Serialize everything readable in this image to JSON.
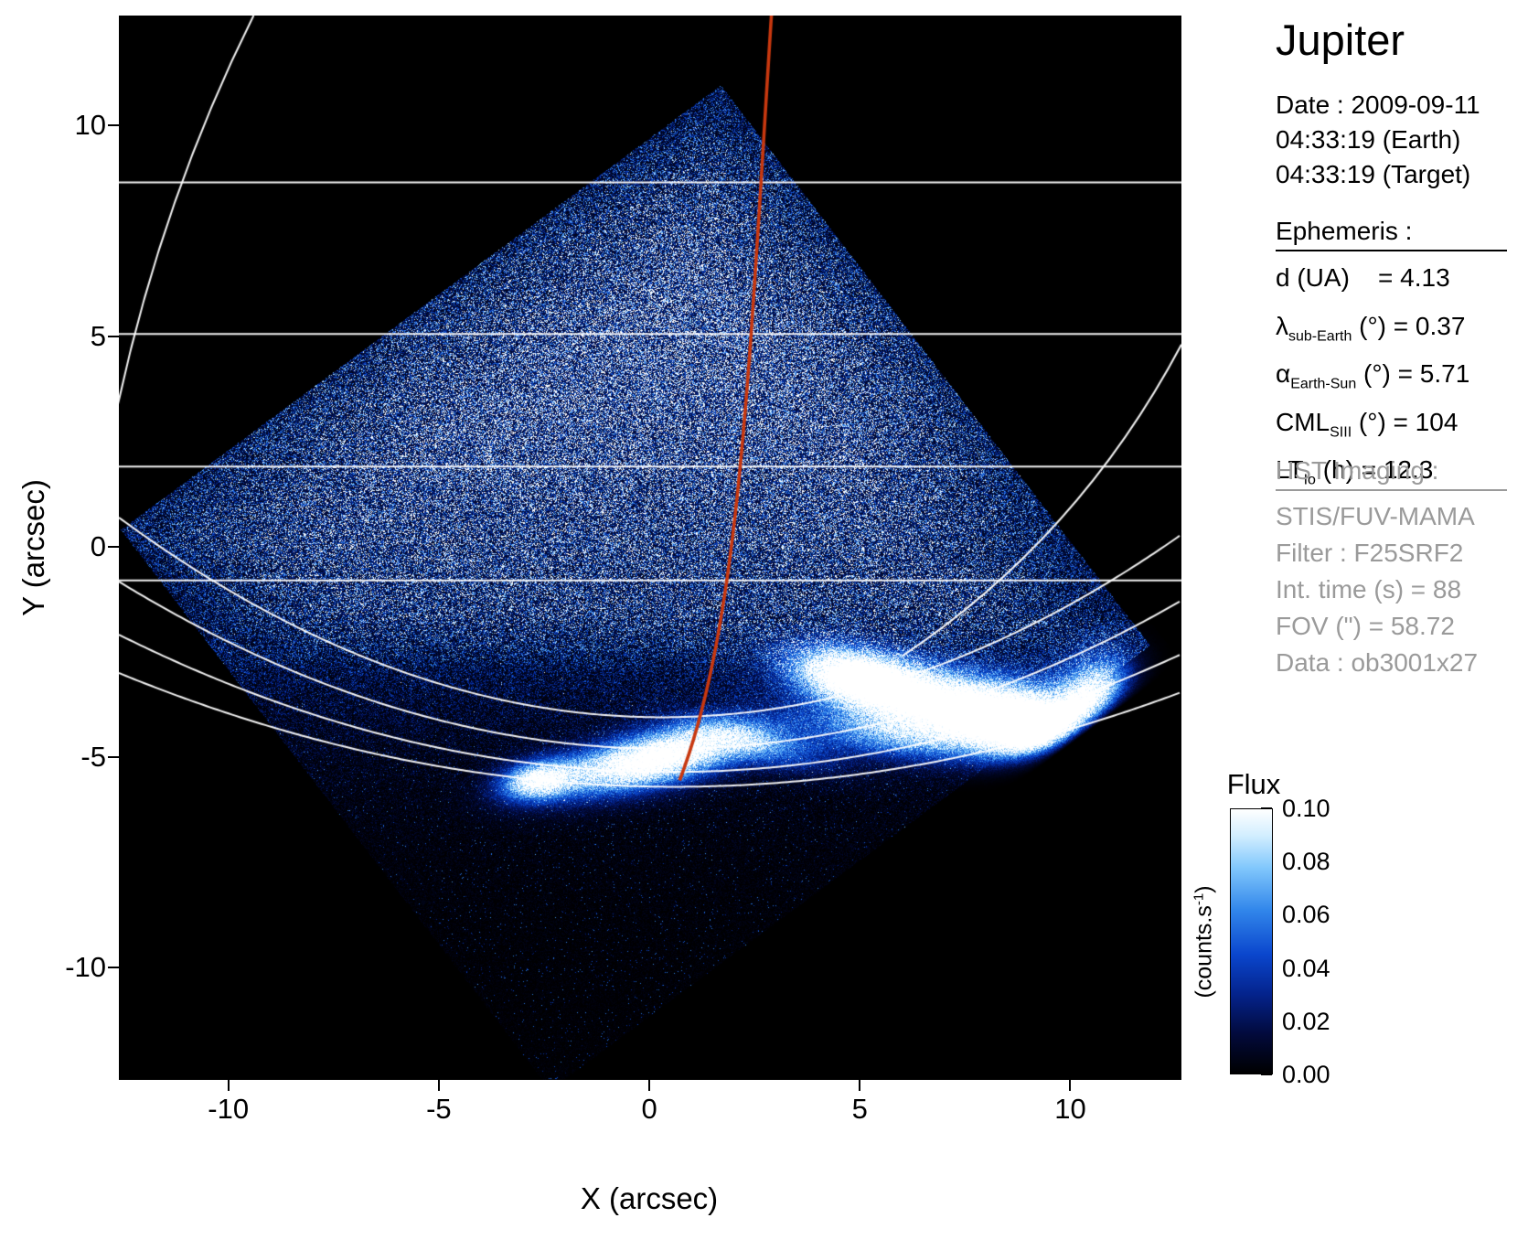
{
  "info_panel": {
    "title": "Jupiter",
    "date_lines": [
      "Date : 2009-09-11",
      "04:33:19 (Earth)",
      "04:33:19 (Target)"
    ],
    "ephemeris_header": "Ephemeris :",
    "ephemeris": [
      {
        "main": "d (UA)",
        "sub": "",
        "tail": "    = 4.13"
      },
      {
        "main": "λ",
        "sub": "sub-Earth",
        "tail": " (°) = 0.37"
      },
      {
        "main": "α",
        "sub": "Earth-Sun",
        "tail": " (°) = 5.71"
      },
      {
        "main": "CML",
        "sub": "SIII",
        "tail": " (°) = 104"
      },
      {
        "main": "LT",
        "sub": "Io",
        "tail": " (h) = 12.3"
      }
    ],
    "hst_header": "HST Imaging :",
    "hst_lines": [
      "STIS/FUV-MAMA",
      "Filter : F25SRF2",
      "Int. time (s) = 88",
      "FOV (\") = 58.72",
      "Data : ob3001x27"
    ],
    "text_color": "#000000",
    "hst_color": "#9a9a9a"
  },
  "axes": {
    "x_label": "X (arcsec)",
    "y_label": "Y (arcsec)"
  },
  "colorbar": {
    "title": "Flux",
    "unit_main": "(counts.s",
    "unit_sup": "-1",
    "unit_close": ")",
    "tick_labels": [
      "0.10",
      "0.08",
      "0.06",
      "0.04",
      "0.02",
      "0.00"
    ]
  },
  "chart_data": {
    "type": "heatmap",
    "description": "HST STIS/FUV-MAMA far-UV image of Jupiter showing the dayside disk (blue noise, rotated detector square) and bright auroral emission near the south pole, with planetocentric grid lines (white) and central meridian line (red).",
    "xlabel": "X (arcsec)",
    "ylabel": "Y (arcsec)",
    "xlim": [
      -12.6,
      12.64
    ],
    "ylim": [
      -12.66,
      12.61
    ],
    "x_ticks": [
      -10,
      -5,
      0,
      5,
      10
    ],
    "y_ticks": [
      10,
      5,
      0,
      -5,
      -10
    ],
    "grid": false,
    "colorbar_range": [
      0,
      0.1
    ],
    "colorbar_tick_values": [
      0.1,
      0.08,
      0.06,
      0.04,
      0.02,
      0.0
    ],
    "colormap_stops": [
      [
        0.0,
        0,
        0,
        0
      ],
      [
        0.15,
        2,
        10,
        60
      ],
      [
        0.3,
        4,
        35,
        140
      ],
      [
        0.45,
        10,
        70,
        205
      ],
      [
        0.62,
        50,
        135,
        235
      ],
      [
        0.78,
        130,
        200,
        252
      ],
      [
        0.9,
        210,
        238,
        255
      ],
      [
        1.0,
        255,
        255,
        255
      ]
    ],
    "detector_corners": {
      "top": [
        1.7,
        10.95
      ],
      "left": [
        -12.55,
        0.4
      ],
      "right": [
        11.9,
        -2.35
      ]
    },
    "terminator_y": -2.2,
    "horizontal_gridlines_y": [
      8.65,
      5.05,
      1.9,
      -0.8
    ],
    "pole_arcs": [
      {
        "x0": 0.3,
        "ymin": -4.05,
        "k": 0.0285
      },
      {
        "x0": 0.4,
        "ymin": -4.8,
        "k": 0.0235
      },
      {
        "x0": 0.5,
        "ymin": -5.35,
        "k": 0.019
      },
      {
        "x0": 0.6,
        "ymin": -5.7,
        "k": 0.0155
      }
    ],
    "limb_curves": [
      {
        "p0": [
          -9.4,
          12.61
        ],
        "cp": [
          -11.6,
          8.2
        ],
        "p1": [
          -12.66,
          3.2
        ]
      },
      {
        "p0": [
          12.64,
          4.8
        ],
        "cp": [
          10.2,
          0.2
        ],
        "p1": [
          6.0,
          -2.6
        ]
      }
    ],
    "meridian_curve": {
      "color": "#c8380f",
      "p0": [
        2.9,
        12.61
      ],
      "c1": [
        2.35,
        4.0
      ],
      "c2": [
        2.15,
        -1.8
      ],
      "p3": [
        0.72,
        -5.55
      ]
    },
    "aurora_blobs": [
      {
        "x": 5.0,
        "y": -3.1,
        "sx": 1.05,
        "sy": 0.42,
        "rot": -12,
        "amp": 1.25
      },
      {
        "x": 8.2,
        "y": -3.95,
        "sx": 2.3,
        "sy": 0.55,
        "rot": -9,
        "amp": 1.5
      },
      {
        "x": 10.75,
        "y": -3.8,
        "sx": 0.65,
        "sy": 0.75,
        "rot": 0,
        "amp": 1.15
      },
      {
        "x": 9.6,
        "y": -4.6,
        "sx": 1.2,
        "sy": 0.4,
        "rot": -10,
        "amp": 0.9
      },
      {
        "x": 0.1,
        "y": -5.05,
        "sx": 1.55,
        "sy": 0.42,
        "rot": 13,
        "amp": 1.35
      },
      {
        "x": -2.65,
        "y": -5.55,
        "sx": 0.6,
        "sy": 0.3,
        "rot": 10,
        "amp": 1.0
      },
      {
        "x": 2.6,
        "y": -4.7,
        "sx": 1.2,
        "sy": 0.32,
        "rot": -14,
        "amp": 0.45
      },
      {
        "x": 5.9,
        "y": -4.5,
        "sx": 1.6,
        "sy": 0.38,
        "rot": -6,
        "amp": 0.55
      }
    ]
  }
}
